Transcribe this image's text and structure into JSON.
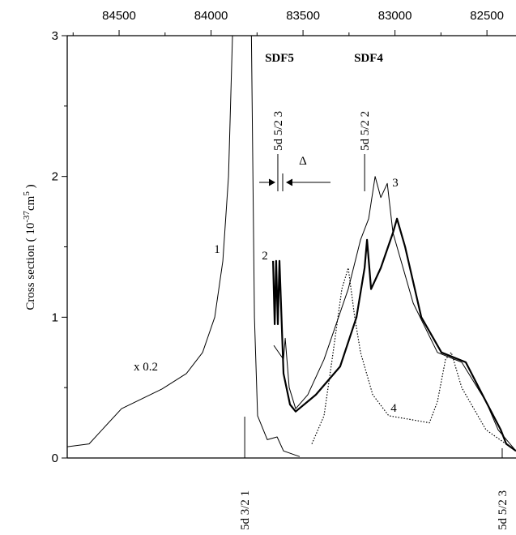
{
  "chart_data": {
    "type": "line",
    "ylabel": [
      "Cross section ( 10",
      "-37",
      "cm",
      "5",
      " )"
    ],
    "xlim": [
      84782,
      82342
    ],
    "ylim": [
      0,
      3
    ],
    "xticks": [
      84500,
      84000,
      83500,
      83000,
      82500
    ],
    "xminorticks": [
      84750,
      84250,
      83750,
      83250,
      82750
    ],
    "yticks": [
      0,
      1,
      2,
      3
    ],
    "yminorticks": [
      0.5,
      1.5,
      2.5
    ],
    "annotations": [
      "SDF5",
      "SDF4",
      "x 0.2",
      "Δ"
    ],
    "markers": [
      {
        "label": "5d 5/2 3",
        "x": 83637,
        "side": "top"
      },
      {
        "label": "5d 5/2 2",
        "x": 83165,
        "side": "top"
      },
      {
        "label": "5d 3/2 1",
        "x": 83817,
        "side": "bottom"
      },
      {
        "label": "5d 5/2 3",
        "x": 82417,
        "side": "bottom"
      }
    ],
    "series": [
      {
        "name": "1",
        "color": "#000000",
        "width": 1,
        "dash": "none",
        "x": [
          84782,
          84663,
          84487,
          84267,
          84134,
          84046,
          83980,
          83936,
          83905,
          83879,
          83782,
          83764,
          83747,
          83694,
          83641,
          83606,
          83518
        ],
        "values": [
          0.08,
          0.1,
          0.35,
          0.49,
          0.6,
          0.75,
          1.0,
          1.4,
          2.0,
          3.2,
          3.2,
          1.0,
          0.3,
          0.13,
          0.15,
          0.05,
          0.01
        ]
      },
      {
        "name": "2",
        "color": "#000000",
        "width": 2.2,
        "dash": "none",
        "x": [
          83663,
          83654,
          83646,
          83637,
          83628,
          83606,
          83571,
          83540,
          83430,
          83298,
          83209,
          83165,
          83152,
          83130,
          83077,
          83011,
          82989,
          82945,
          82857,
          82747,
          82615,
          82505,
          82425,
          82395,
          82342
        ],
        "values": [
          1.4,
          0.95,
          1.4,
          0.95,
          1.4,
          0.6,
          0.38,
          0.33,
          0.45,
          0.65,
          1.0,
          1.35,
          1.55,
          1.2,
          1.35,
          1.6,
          1.7,
          1.5,
          1.0,
          0.75,
          0.68,
          0.4,
          0.2,
          0.1,
          0.05
        ]
      },
      {
        "name": "3",
        "color": "#000000",
        "width": 1,
        "dash": "none",
        "x": [
          83659,
          83606,
          83597,
          83575,
          83540,
          83474,
          83386,
          83254,
          83187,
          83143,
          83108,
          83077,
          83042,
          83011,
          82901,
          82769,
          82637,
          82505,
          82439,
          82342
        ],
        "values": [
          0.8,
          0.7,
          0.85,
          0.5,
          0.35,
          0.45,
          0.7,
          1.2,
          1.55,
          1.7,
          2.0,
          1.85,
          1.95,
          1.6,
          1.1,
          0.75,
          0.68,
          0.4,
          0.2,
          0.05
        ]
      },
      {
        "name": "4",
        "color": "#000000",
        "width": 1.2,
        "dash": "1.5 2",
        "x": [
          83452,
          83386,
          83342,
          83289,
          83254,
          83219,
          83187,
          83121,
          83034,
          82901,
          82813,
          82769,
          82725,
          82694,
          82637,
          82505,
          82342
        ],
        "values": [
          0.1,
          0.3,
          0.7,
          1.2,
          1.35,
          1.0,
          0.75,
          0.45,
          0.3,
          0.27,
          0.25,
          0.4,
          0.7,
          0.75,
          0.5,
          0.2,
          0.05
        ]
      }
    ]
  }
}
